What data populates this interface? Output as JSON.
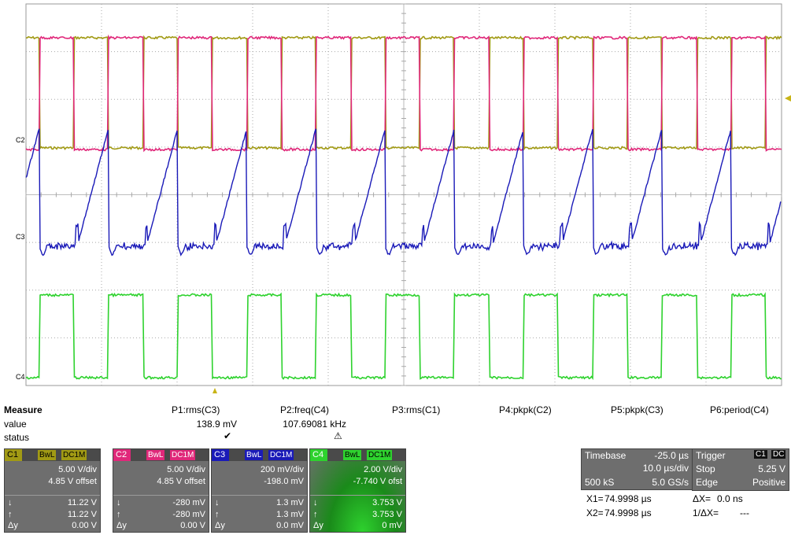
{
  "traces": {
    "c1": {
      "label": "C1",
      "color": "#a19a14"
    },
    "c2": {
      "label": "C2",
      "color": "#e0287a"
    },
    "c3": {
      "label": "C3",
      "color": "#1a1ab8"
    },
    "c4": {
      "label": "C4",
      "color": "#2ed22e"
    }
  },
  "measure": {
    "title": "Measure",
    "value_label": "value",
    "status_label": "status",
    "params": [
      {
        "name": "P1:rms(C3)",
        "value": "138.9 mV",
        "status": "✔"
      },
      {
        "name": "P2:freq(C4)",
        "value": "107.69081 kHz",
        "status": "⚠"
      },
      {
        "name": "P3:rms(C1)",
        "value": "",
        "status": ""
      },
      {
        "name": "P4:pkpk(C2)",
        "value": "",
        "status": ""
      },
      {
        "name": "P5:pkpk(C3)",
        "value": "",
        "status": ""
      },
      {
        "name": "P6:period(C4)",
        "value": "",
        "status": ""
      }
    ]
  },
  "channels": [
    {
      "num": "C1",
      "color": "#a19a14",
      "bwl": "BwL",
      "coupling": "DC1M",
      "vdiv": "5.00 V/div",
      "offset": "4.85 V offset",
      "down": "11.22 V",
      "up": "11.22 V",
      "dy": "0.00 V"
    },
    {
      "num": "C2",
      "color": "#e0287a",
      "bwl": "BwL",
      "coupling": "DC1M",
      "vdiv": "5.00 V/div",
      "offset": "4.85 V offset",
      "down": "-280 mV",
      "up": "-280 mV",
      "dy": "0.00 V"
    },
    {
      "num": "C3",
      "color": "#1a1ab8",
      "bwl": "BwL",
      "coupling": "DC1M",
      "vdiv": "200 mV/div",
      "offset": "-198.0 mV",
      "down": "1.3 mV",
      "up": "1.3 mV",
      "dy": "0.0 mV"
    },
    {
      "num": "C4",
      "color": "#2ed22e",
      "bwl": "BwL",
      "coupling": "DC1M",
      "vdiv": "2.00 V/div",
      "offset": "-7.740 V ofst",
      "down": "3.753 V",
      "up": "3.753 V",
      "dy": "0 mV"
    }
  ],
  "labels": {
    "down_arrow": "↓",
    "up_arrow": "↑",
    "dy": "Δy"
  },
  "timebase": {
    "title": "Timebase",
    "delay": "-25.0 µs",
    "tdiv": "10.0 µs/div",
    "samples": "500 kS",
    "rate": "5.0 GS/s"
  },
  "trigger": {
    "title": "Trigger",
    "chan": "C1",
    "coupling": "DC",
    "mode": "Stop",
    "level": "5.25 V",
    "type": "Edge",
    "slope": "Positive"
  },
  "cursors": {
    "x1_label": "X1=",
    "x1": "74.9998 µs",
    "dx_label": "ΔX=",
    "dx": "0.0 ns",
    "x2_label": "X2=",
    "x2": "74.9998 µs",
    "inv_dx_label": "1/ΔX=",
    "inv_dx": "---"
  }
}
